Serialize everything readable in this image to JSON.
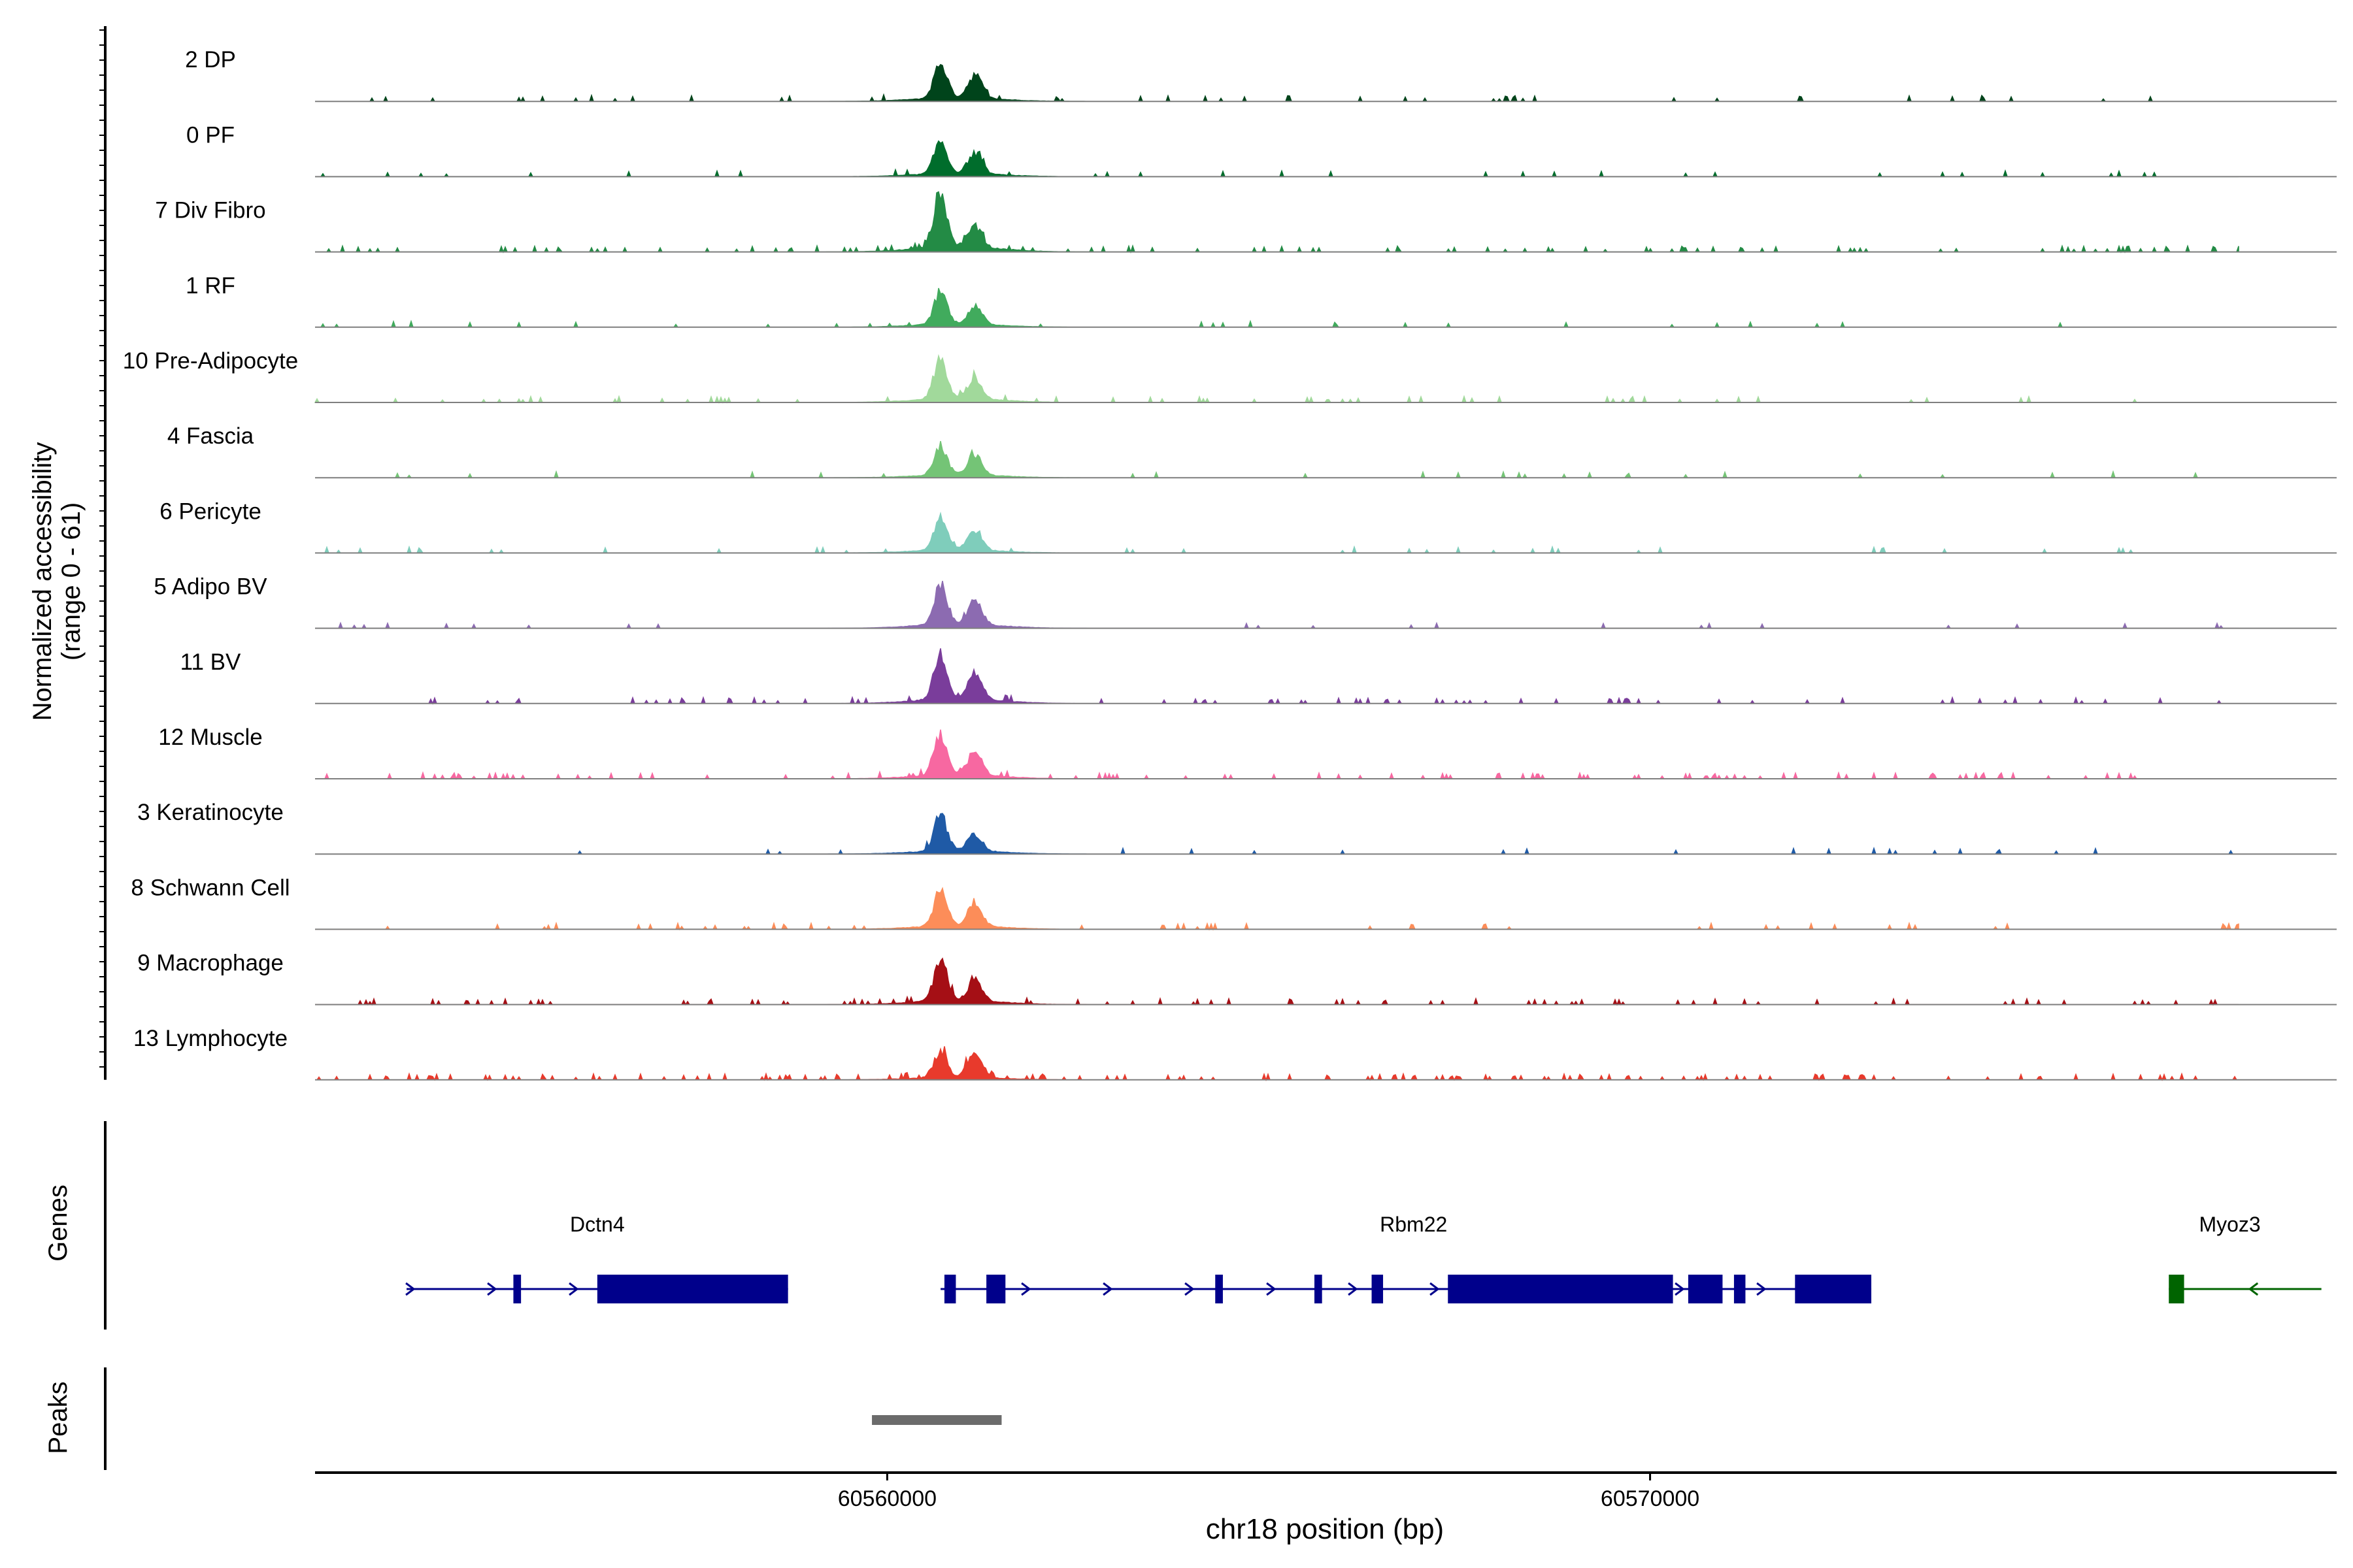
{
  "chart_data": {
    "type": "genome_coverage_tracks",
    "ylabel_line1": "Normalized accessibility",
    "ylabel_line2": "(range 0 - 61)",
    "y_range": [
      0,
      61
    ],
    "xlabel": "chr18 position (bp)",
    "x_range": [
      60552500,
      60579000
    ],
    "x_ticks": [
      {
        "value": 60560000,
        "label": "60560000"
      },
      {
        "value": 60570000,
        "label": "60570000"
      }
    ],
    "peak_summits": [
      60560700,
      60561150
    ],
    "tracks": [
      {
        "label": "2 DP",
        "color": "#00441b",
        "main": 0.6,
        "second": 0.4,
        "noise": 0.05
      },
      {
        "label": "0 PF",
        "color": "#006d2c",
        "main": 0.55,
        "second": 0.35,
        "noise": 0.04
      },
      {
        "label": "7 Div Fibro",
        "color": "#238b45",
        "main": 0.9,
        "second": 0.35,
        "noise": 0.1
      },
      {
        "label": "1 RF",
        "color": "#41ab5d",
        "main": 0.55,
        "second": 0.3,
        "noise": 0.03
      },
      {
        "label": "10 Pre-Adipocyte",
        "color": "#a1d99b",
        "main": 0.7,
        "second": 0.35,
        "noise": 0.06
      },
      {
        "label": "4 Fascia",
        "color": "#74c476",
        "main": 0.5,
        "second": 0.35,
        "noise": 0.03
      },
      {
        "label": "6 Pericyte",
        "color": "#7fcdbb",
        "main": 0.55,
        "second": 0.35,
        "noise": 0.03
      },
      {
        "label": "5 Adipo BV",
        "color": "#8c6bb1",
        "main": 0.7,
        "second": 0.4,
        "noise": 0.03
      },
      {
        "label": "11 BV",
        "color": "#7a3d9b",
        "main": 0.8,
        "second": 0.45,
        "noise": 0.08
      },
      {
        "label": "12 Muscle",
        "color": "#f768a1",
        "main": 0.7,
        "second": 0.4,
        "noise": 0.1
      },
      {
        "label": "3 Keratinocyte",
        "color": "#1f5aa6",
        "main": 0.6,
        "second": 0.3,
        "noise": 0.03
      },
      {
        "label": "8 Schwann Cell",
        "color": "#fc8d59",
        "main": 0.6,
        "second": 0.4,
        "noise": 0.05
      },
      {
        "label": "9 Macrophage",
        "color": "#a50f15",
        "main": 0.7,
        "second": 0.35,
        "noise": 0.1
      },
      {
        "label": "13 Lymphocyte",
        "color": "#e83a2c",
        "main": 0.45,
        "second": 0.45,
        "noise": 0.15
      }
    ],
    "genes_label": "Genes",
    "genes": [
      {
        "name": "Dctn4",
        "strand": "+",
        "color": "#00008b",
        "start": 60553700,
        "end": 60558700,
        "label_pos": 60556200,
        "exons": [
          [
            60555100,
            60555200
          ],
          [
            60556200,
            60558700
          ]
        ]
      },
      {
        "name": "Rbm22",
        "strand": "+",
        "color": "#00008b",
        "start": 60560700,
        "end": 60572900,
        "label_pos": 60566900,
        "exons": [
          [
            60560750,
            60560900
          ],
          [
            60561300,
            60561550
          ],
          [
            60564300,
            60564400
          ],
          [
            60565600,
            60565700
          ],
          [
            60566350,
            60566500
          ],
          [
            60567350,
            60570300
          ],
          [
            60570500,
            60570950
          ],
          [
            60571100,
            60571250
          ],
          [
            60571900,
            60572900
          ]
        ]
      },
      {
        "name": "Myoz3",
        "strand": "-",
        "color": "#006400",
        "start": 60576800,
        "end": 60578800,
        "label_pos": 60577600,
        "exons": [
          [
            60576800,
            60577000
          ]
        ]
      }
    ],
    "peaks_label": "Peaks",
    "peaks": [
      [
        60559800,
        60561500
      ]
    ]
  }
}
